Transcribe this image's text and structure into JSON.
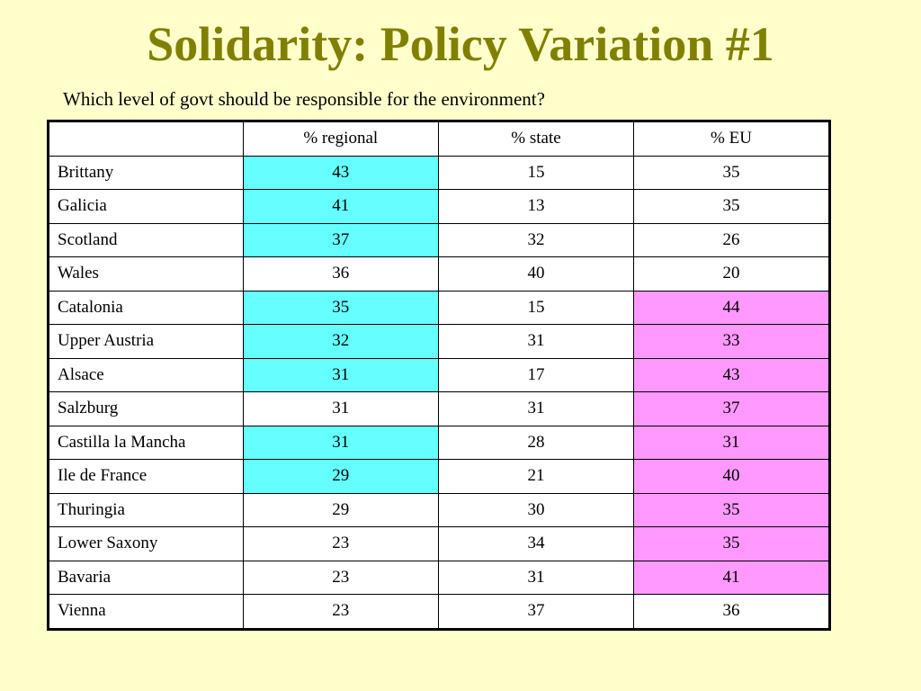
{
  "slide": {
    "title": "Solidarity: Policy Variation #1",
    "subtitle": "Which level of govt should be responsible for the environment?"
  },
  "colors": {
    "background": "#ffffcc",
    "title": "#808000",
    "highlight_regional": "#66ffff",
    "highlight_eu": "#ff99ff"
  },
  "table": {
    "headers": [
      "",
      "% regional",
      "% state",
      "% EU"
    ],
    "rows": [
      {
        "region": "Brittany",
        "regional": "43",
        "state": "15",
        "eu": "35",
        "hl_regional": true,
        "hl_eu": false
      },
      {
        "region": "Galicia",
        "regional": "41",
        "state": "13",
        "eu": "35",
        "hl_regional": true,
        "hl_eu": false
      },
      {
        "region": "Scotland",
        "regional": "37",
        "state": "32",
        "eu": "26",
        "hl_regional": true,
        "hl_eu": false
      },
      {
        "region": "Wales",
        "regional": "36",
        "state": "40",
        "eu": "20",
        "hl_regional": false,
        "hl_eu": false
      },
      {
        "region": "Catalonia",
        "regional": "35",
        "state": "15",
        "eu": "44",
        "hl_regional": true,
        "hl_eu": true
      },
      {
        "region": "Upper Austria",
        "regional": "32",
        "state": "31",
        "eu": "33",
        "hl_regional": true,
        "hl_eu": true
      },
      {
        "region": "Alsace",
        "regional": "31",
        "state": "17",
        "eu": "43",
        "hl_regional": true,
        "hl_eu": true
      },
      {
        "region": "Salzburg",
        "regional": "31",
        "state": "31",
        "eu": "37",
        "hl_regional": false,
        "hl_eu": true
      },
      {
        "region": "Castilla la Mancha",
        "regional": "31",
        "state": "28",
        "eu": "31",
        "hl_regional": true,
        "hl_eu": true
      },
      {
        "region": "Ile de France",
        "regional": "29",
        "state": "21",
        "eu": "40",
        "hl_regional": true,
        "hl_eu": true
      },
      {
        "region": "Thuringia",
        "regional": "29",
        "state": "30",
        "eu": "35",
        "hl_regional": false,
        "hl_eu": true
      },
      {
        "region": "Lower Saxony",
        "regional": "23",
        "state": "34",
        "eu": "35",
        "hl_regional": false,
        "hl_eu": true
      },
      {
        "region": "Bavaria",
        "regional": "23",
        "state": "31",
        "eu": "41",
        "hl_regional": false,
        "hl_eu": true
      },
      {
        "region": "Vienna",
        "regional": "23",
        "state": "37",
        "eu": "36",
        "hl_regional": false,
        "hl_eu": false
      }
    ]
  }
}
